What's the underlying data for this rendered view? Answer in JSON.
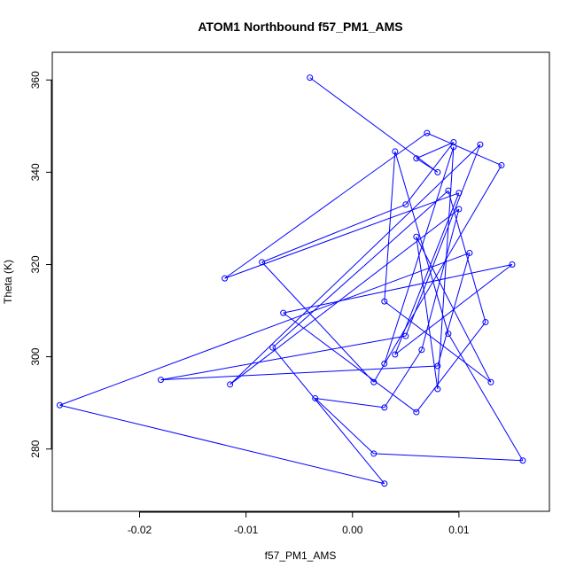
{
  "chart_data": {
    "type": "line",
    "title": "ATOM1 Northbound f57_PM1_AMS",
    "xlabel": "f57_PM1_AMS",
    "ylabel": "Theta (K)",
    "xlim": [
      -0.0282,
      0.0185
    ],
    "ylim": [
      266.5,
      366.0
    ],
    "x_ticks": [
      -0.02,
      -0.01,
      0.0,
      0.01
    ],
    "x_tick_labels": [
      "-0.02",
      "-0.01",
      "0.00",
      "0.01"
    ],
    "y_ticks": [
      280,
      300,
      320,
      340,
      360
    ],
    "y_tick_labels": [
      "280",
      "300",
      "320",
      "340",
      "360"
    ],
    "grid": false,
    "marker": "open-circle",
    "color": "#0000ff",
    "series": [
      {
        "x": [
          -0.004,
          0.008,
          0.006,
          0.0095,
          0.005,
          -0.0085,
          0.002,
          0.014,
          0.007,
          -0.012,
          0.01,
          0.004,
          0.015,
          -0.0065,
          0.006,
          0.0125,
          0.009,
          -0.0075,
          0.003,
          -0.0275,
          0.011,
          0.008,
          -0.018,
          0.005,
          0.012,
          -0.0115,
          0.01,
          0.0065,
          0.003,
          -0.0035,
          0.002,
          0.016,
          0.009,
          0.004,
          0.003,
          0.013,
          0.006,
          0.008,
          0.0095,
          0.003
        ],
        "y": [
          360.5,
          340.0,
          343.0,
          346.5,
          333.0,
          320.5,
          294.5,
          341.5,
          348.5,
          317.0,
          335.5,
          300.5,
          320.0,
          309.5,
          288.0,
          307.5,
          336.0,
          302.0,
          272.5,
          289.5,
          322.5,
          298.0,
          295.0,
          304.5,
          346.0,
          294.0,
          332.0,
          301.5,
          289.0,
          291.0,
          279.0,
          277.5,
          305.0,
          344.5,
          312.0,
          294.5,
          326.0,
          293.0,
          345.5,
          298.5
        ]
      }
    ]
  }
}
